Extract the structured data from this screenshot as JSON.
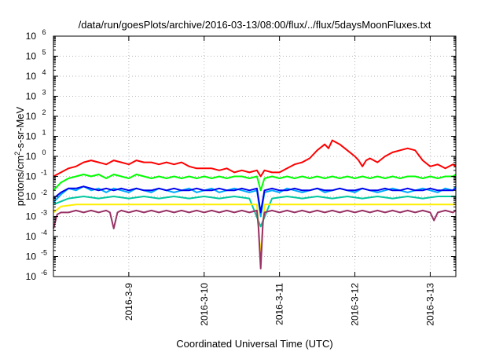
{
  "chart_data": {
    "type": "line",
    "title": "/data/run/goesPlots/archive/2016-03-13/08:00/flux/../flux/5daysMoonFluxes.txt",
    "xlabel": "Coordinated Universal Time (UTC)",
    "ylabel": "protons/cm2-s-sr-MeV",
    "ylabel_parts": {
      "pre": "protons/cm",
      "sup": "2",
      "post": "-s-sr-MeV"
    },
    "yscale": "log",
    "grid": true,
    "legend": "none",
    "x_unit": "days (March 2016)",
    "xlim": [
      8.0,
      13.34
    ],
    "ylim_exp": [
      -6,
      6
    ],
    "y_ticks": [
      {
        "base": "10",
        "exp": "-6"
      },
      {
        "base": "10",
        "exp": "-5"
      },
      {
        "base": "10",
        "exp": "-4"
      },
      {
        "base": "10",
        "exp": "-3"
      },
      {
        "base": "10",
        "exp": "-2"
      },
      {
        "base": "10",
        "exp": "-1"
      },
      {
        "base": "10",
        "exp": "0"
      },
      {
        "base": "10",
        "exp": "1"
      },
      {
        "base": "10",
        "exp": "2"
      },
      {
        "base": "10",
        "exp": "3"
      },
      {
        "base": "10",
        "exp": "4"
      },
      {
        "base": "10",
        "exp": "5"
      },
      {
        "base": "10",
        "exp": "6"
      }
    ],
    "x_ticks": [
      {
        "label": "2016-3-9",
        "value": 9.0
      },
      {
        "label": "2016-3-10",
        "value": 10.0
      },
      {
        "label": "2016-3-11",
        "value": 11.0
      },
      {
        "label": "2016-3-12",
        "value": 12.0
      },
      {
        "label": "2016-3-13",
        "value": 13.0
      }
    ],
    "series": [
      {
        "color": "#ff0000",
        "x": [
          8.0,
          8.1,
          8.2,
          8.3,
          8.4,
          8.5,
          8.6,
          8.7,
          8.8,
          8.9,
          9.0,
          9.1,
          9.2,
          9.3,
          9.4,
          9.5,
          9.6,
          9.7,
          9.8,
          9.9,
          10.0,
          10.1,
          10.2,
          10.3,
          10.4,
          10.5,
          10.6,
          10.7,
          10.75,
          10.8,
          10.9,
          11.0,
          11.1,
          11.2,
          11.3,
          11.4,
          11.5,
          11.6,
          11.65,
          11.7,
          11.8,
          11.9,
          12.0,
          12.05,
          12.1,
          12.15,
          12.2,
          12.3,
          12.4,
          12.5,
          12.6,
          12.7,
          12.8,
          12.9,
          13.0,
          13.1,
          13.2,
          13.3,
          13.34
        ],
        "y_exp": [
          -1.0,
          -0.8,
          -0.6,
          -0.5,
          -0.3,
          -0.2,
          -0.3,
          -0.4,
          -0.2,
          -0.3,
          -0.4,
          -0.2,
          -0.3,
          -0.3,
          -0.4,
          -0.3,
          -0.4,
          -0.3,
          -0.5,
          -0.6,
          -0.6,
          -0.6,
          -0.7,
          -0.6,
          -0.8,
          -0.7,
          -0.8,
          -0.7,
          -1.0,
          -0.7,
          -0.8,
          -0.8,
          -0.6,
          -0.4,
          -0.3,
          -0.1,
          0.3,
          0.6,
          0.4,
          0.8,
          0.6,
          0.3,
          0.0,
          -0.2,
          -0.5,
          -0.2,
          -0.1,
          -0.3,
          0.0,
          0.2,
          0.3,
          0.4,
          0.3,
          -0.2,
          -0.5,
          -0.4,
          -0.6,
          -0.4,
          -0.5
        ]
      },
      {
        "color": "#00ff00",
        "x": [
          8.0,
          8.1,
          8.2,
          8.3,
          8.4,
          8.5,
          8.6,
          8.7,
          8.8,
          8.9,
          9.0,
          9.1,
          9.2,
          9.3,
          9.4,
          9.5,
          9.6,
          9.7,
          9.8,
          9.9,
          10.0,
          10.1,
          10.2,
          10.3,
          10.4,
          10.5,
          10.6,
          10.7,
          10.75,
          10.8,
          10.9,
          11.0,
          11.1,
          11.2,
          11.3,
          11.4,
          11.5,
          11.6,
          11.7,
          11.8,
          11.9,
          12.0,
          12.1,
          12.2,
          12.3,
          12.4,
          12.5,
          12.6,
          12.7,
          12.8,
          12.9,
          13.0,
          13.1,
          13.2,
          13.3,
          13.34
        ],
        "y_exp": [
          -1.7,
          -1.3,
          -1.1,
          -1.0,
          -0.9,
          -1.0,
          -0.9,
          -1.1,
          -0.9,
          -1.0,
          -1.1,
          -0.9,
          -1.0,
          -1.1,
          -1.0,
          -1.1,
          -1.0,
          -1.1,
          -1.0,
          -1.1,
          -1.0,
          -1.1,
          -1.0,
          -1.1,
          -1.0,
          -1.0,
          -1.1,
          -1.0,
          -1.7,
          -1.1,
          -1.0,
          -1.1,
          -1.0,
          -1.1,
          -1.0,
          -1.1,
          -1.0,
          -1.1,
          -1.0,
          -1.1,
          -1.0,
          -1.1,
          -1.0,
          -1.1,
          -1.0,
          -1.1,
          -1.0,
          -1.1,
          -1.0,
          -1.0,
          -1.1,
          -1.0,
          -1.1,
          -1.0,
          -1.0,
          -0.9
        ]
      },
      {
        "color": "#00aaff",
        "x": [
          8.0,
          8.1,
          8.2,
          8.3,
          8.4,
          8.5,
          8.6,
          8.7,
          8.8,
          8.9,
          9.0,
          9.1,
          9.2,
          9.3,
          9.4,
          9.5,
          9.6,
          9.7,
          9.8,
          9.9,
          10.0,
          10.1,
          10.2,
          10.3,
          10.4,
          10.5,
          10.6,
          10.7,
          10.75,
          10.8,
          10.9,
          11.0,
          11.1,
          11.2,
          11.3,
          11.4,
          11.5,
          11.6,
          11.7,
          11.8,
          11.9,
          12.0,
          12.1,
          12.2,
          12.3,
          12.4,
          12.5,
          12.6,
          12.7,
          12.8,
          12.9,
          13.0,
          13.1,
          13.2,
          13.3,
          13.34
        ],
        "y_exp": [
          -2.3,
          -1.9,
          -1.6,
          -1.7,
          -1.5,
          -1.7,
          -1.6,
          -1.8,
          -1.6,
          -1.7,
          -1.8,
          -1.6,
          -1.7,
          -1.8,
          -1.6,
          -1.7,
          -1.8,
          -1.7,
          -1.6,
          -1.8,
          -1.7,
          -1.6,
          -1.8,
          -1.7,
          -1.6,
          -1.7,
          -1.8,
          -1.7,
          -3.0,
          -1.8,
          -1.7,
          -1.8,
          -1.6,
          -1.7,
          -1.8,
          -1.7,
          -1.6,
          -1.8,
          -1.7,
          -1.6,
          -1.7,
          -1.8,
          -1.6,
          -1.7,
          -1.8,
          -1.7,
          -1.6,
          -1.7,
          -1.8,
          -1.7,
          -1.6,
          -1.7,
          -1.8,
          -1.6,
          -1.7,
          -1.5
        ]
      },
      {
        "color": "#0000ee",
        "x": [
          8.0,
          8.1,
          8.2,
          8.3,
          8.4,
          8.5,
          8.6,
          8.7,
          8.8,
          8.9,
          9.0,
          9.1,
          9.2,
          9.3,
          9.4,
          9.5,
          9.6,
          9.7,
          9.8,
          9.9,
          10.0,
          10.1,
          10.2,
          10.3,
          10.4,
          10.5,
          10.6,
          10.7,
          10.75,
          10.8,
          10.9,
          11.0,
          11.1,
          11.2,
          11.3,
          11.4,
          11.5,
          11.6,
          11.7,
          11.8,
          11.9,
          12.0,
          12.1,
          12.2,
          12.3,
          12.4,
          12.5,
          12.6,
          12.7,
          12.8,
          12.9,
          13.0,
          13.1,
          13.2,
          13.3,
          13.34
        ],
        "y_exp": [
          -2.1,
          -1.8,
          -1.6,
          -1.6,
          -1.5,
          -1.6,
          -1.7,
          -1.6,
          -1.7,
          -1.6,
          -1.7,
          -1.6,
          -1.7,
          -1.7,
          -1.6,
          -1.7,
          -1.6,
          -1.7,
          -1.7,
          -1.6,
          -1.7,
          -1.7,
          -1.6,
          -1.7,
          -1.7,
          -1.6,
          -1.7,
          -1.6,
          -2.8,
          -1.7,
          -1.6,
          -1.7,
          -1.7,
          -1.6,
          -1.7,
          -1.7,
          -1.6,
          -1.7,
          -1.7,
          -1.6,
          -1.7,
          -1.7,
          -1.6,
          -1.7,
          -1.7,
          -1.6,
          -1.7,
          -1.7,
          -1.6,
          -1.7,
          -1.7,
          -1.6,
          -1.7,
          -1.7,
          -1.7,
          -1.6
        ]
      },
      {
        "color": "#00c8a0",
        "x": [
          8.0,
          8.2,
          8.4,
          8.6,
          8.8,
          9.0,
          9.2,
          9.4,
          9.6,
          9.8,
          10.0,
          10.2,
          10.4,
          10.6,
          10.75,
          10.9,
          11.1,
          11.3,
          11.5,
          11.7,
          11.9,
          12.1,
          12.3,
          12.5,
          12.7,
          12.9,
          13.1,
          13.34
        ],
        "y_exp": [
          -2.4,
          -2.1,
          -2.0,
          -2.1,
          -2.0,
          -2.1,
          -2.0,
          -2.1,
          -2.0,
          -2.1,
          -2.0,
          -2.1,
          -2.0,
          -2.1,
          -3.5,
          -2.1,
          -2.0,
          -2.1,
          -2.0,
          -2.1,
          -2.0,
          -2.1,
          -2.0,
          -2.1,
          -2.0,
          -2.1,
          -2.0,
          -2.0
        ]
      },
      {
        "color": "#ffee00",
        "x": [
          8.0,
          8.1,
          8.3,
          8.5,
          8.7,
          8.9,
          9.1,
          9.3,
          9.5,
          9.7,
          9.9,
          10.1,
          10.3,
          10.5,
          10.7,
          10.75,
          10.8,
          11.0,
          11.2,
          11.4,
          11.6,
          11.8,
          12.0,
          12.2,
          12.4,
          12.6,
          12.8,
          13.0,
          13.2,
          13.34
        ],
        "y_exp": [
          -2.8,
          -2.5,
          -2.4,
          -2.4,
          -2.4,
          -2.4,
          -2.4,
          -2.4,
          -2.4,
          -2.4,
          -2.4,
          -2.4,
          -2.4,
          -2.4,
          -2.4,
          -5.0,
          -2.4,
          -2.4,
          -2.4,
          -2.4,
          -2.4,
          -2.4,
          -2.4,
          -2.4,
          -2.4,
          -2.4,
          -2.4,
          -2.4,
          -2.4,
          -2.4
        ]
      },
      {
        "color": "#993366",
        "x": [
          8.0,
          8.05,
          8.1,
          8.2,
          8.3,
          8.4,
          8.5,
          8.6,
          8.7,
          8.75,
          8.8,
          8.85,
          8.9,
          9.0,
          9.1,
          9.2,
          9.3,
          9.4,
          9.5,
          9.6,
          9.7,
          9.8,
          9.9,
          10.0,
          10.1,
          10.2,
          10.3,
          10.4,
          10.5,
          10.6,
          10.7,
          10.72,
          10.75,
          10.78,
          10.8,
          10.9,
          11.0,
          11.1,
          11.2,
          11.3,
          11.4,
          11.5,
          11.6,
          11.7,
          11.8,
          11.9,
          12.0,
          12.1,
          12.2,
          12.3,
          12.4,
          12.5,
          12.6,
          12.7,
          12.8,
          12.9,
          13.0,
          13.05,
          13.1,
          13.2,
          13.3,
          13.34
        ],
        "y_exp": [
          -3.6,
          -2.9,
          -2.8,
          -2.8,
          -2.7,
          -2.8,
          -2.7,
          -2.8,
          -2.7,
          -2.8,
          -3.6,
          -2.8,
          -2.7,
          -2.8,
          -2.7,
          -2.8,
          -2.7,
          -2.8,
          -2.7,
          -2.8,
          -2.7,
          -2.8,
          -2.7,
          -2.8,
          -2.7,
          -2.8,
          -2.7,
          -2.8,
          -2.7,
          -2.8,
          -2.7,
          -3.5,
          -5.6,
          -3.3,
          -2.8,
          -2.7,
          -2.8,
          -2.7,
          -2.8,
          -2.7,
          -2.8,
          -2.7,
          -2.8,
          -2.7,
          -2.8,
          -2.7,
          -2.8,
          -2.7,
          -2.8,
          -2.7,
          -2.8,
          -2.7,
          -2.8,
          -2.7,
          -2.8,
          -2.7,
          -2.8,
          -3.2,
          -2.8,
          -2.7,
          -2.8,
          -2.7
        ]
      }
    ]
  }
}
